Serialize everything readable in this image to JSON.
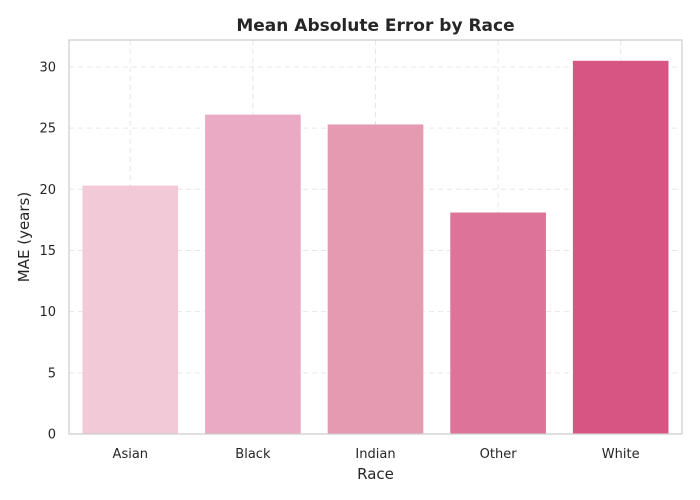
{
  "chart_data": {
    "type": "bar",
    "title": "Mean Absolute Error by Race",
    "xlabel": "Race",
    "ylabel": "MAE (years)",
    "categories": [
      "Asian",
      "Black",
      "Indian",
      "Other",
      "White"
    ],
    "values": [
      20.3,
      26.1,
      25.3,
      18.1,
      30.5
    ],
    "colors": [
      "#f2c9d6",
      "#ebaac4",
      "#e59ab2",
      "#de7399",
      "#d65582"
    ],
    "ylim": [
      0,
      32.2
    ],
    "yticks": [
      0,
      5,
      10,
      15,
      20,
      25,
      30
    ],
    "grid": true,
    "legend": "none"
  }
}
